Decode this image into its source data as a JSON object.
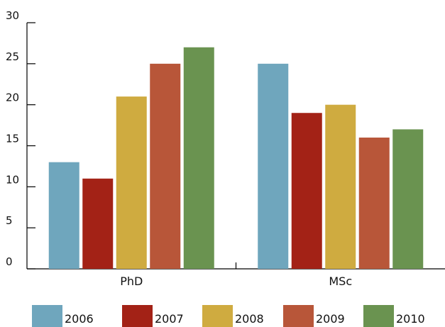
{
  "chart_data": {
    "type": "bar",
    "title": "",
    "xlabel": "",
    "ylabel": "",
    "categories": [
      "PhD",
      "MSc"
    ],
    "ylim": [
      0,
      30
    ],
    "yticks": [
      0,
      5,
      10,
      15,
      20,
      25,
      30
    ],
    "grid": false,
    "legend_position": "bottom",
    "series": [
      {
        "name": "2006",
        "color": "#6fa6bd",
        "values": [
          13,
          25
        ]
      },
      {
        "name": "2007",
        "color": "#a32216",
        "values": [
          11,
          19
        ]
      },
      {
        "name": "2008",
        "color": "#cfab40",
        "values": [
          21,
          20
        ]
      },
      {
        "name": "2009",
        "color": "#b85639",
        "values": [
          25,
          16
        ]
      },
      {
        "name": "2010",
        "color": "#6a9350",
        "values": [
          27,
          17
        ]
      }
    ]
  }
}
